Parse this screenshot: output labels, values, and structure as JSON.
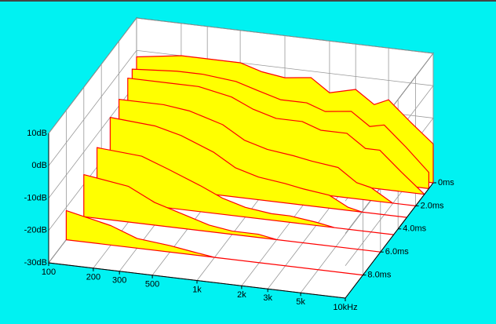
{
  "chart_data": {
    "type": "waterfall",
    "x": [
      100,
      200,
      300,
      500,
      700,
      1000,
      1500,
      2000,
      3000,
      4000,
      5000,
      7000,
      10000
    ],
    "xlim": [
      100,
      10000
    ],
    "log_x": true,
    "xticks": [
      100,
      200,
      300,
      500,
      {
        "value": 1000,
        "label": "1k"
      },
      {
        "value": 2000,
        "label": "2k"
      },
      {
        "value": 3000,
        "label": "3k"
      },
      {
        "value": 5000,
        "label": "5k"
      },
      {
        "value": 10000,
        "label": "10kHz"
      }
    ],
    "ylim": [
      -30,
      10
    ],
    "yticks": [
      {
        "value": 10,
        "label": "10dB"
      },
      {
        "value": 0,
        "label": "0dB"
      },
      {
        "value": -10,
        "label": "-10dB"
      },
      {
        "value": -20,
        "label": "-20dB"
      },
      {
        "value": -30,
        "label": "-30dB"
      }
    ],
    "zlim": [
      0,
      10
    ],
    "zticks": [
      {
        "value": 0,
        "label": "0ms"
      },
      {
        "value": 2,
        "label": "2.0ms"
      },
      {
        "value": 4,
        "label": "4.0ms"
      },
      {
        "value": 6,
        "label": "6.0ms"
      },
      {
        "value": 8,
        "label": "8.0ms"
      }
    ],
    "grid": true,
    "fill_color": "#ffff00",
    "line_color": "#ff0000",
    "series": [
      {
        "time": 0,
        "values": [
          -2,
          0,
          0,
          0,
          -2,
          -3,
          -2,
          -6,
          -4,
          -8,
          -6,
          -12,
          -18
        ]
      },
      {
        "time": 0.5,
        "values": [
          -4,
          -3,
          -3,
          -4,
          -6,
          -8,
          -8,
          -10,
          -9,
          -13,
          -12,
          -18,
          -25
        ]
      },
      {
        "time": 1,
        "values": [
          -5,
          -5,
          -5,
          -7,
          -10,
          -12,
          -12,
          -14,
          -14,
          -18,
          -18,
          -24,
          -30
        ]
      },
      {
        "time": 2,
        "values": [
          -8,
          -8,
          -9,
          -12,
          -16,
          -18,
          -19,
          -20,
          -21,
          -25,
          -26,
          -30,
          -30
        ]
      },
      {
        "time": 3,
        "values": [
          -10,
          -11,
          -13,
          -17,
          -21,
          -23,
          -24,
          -25,
          -26,
          -29,
          -30,
          -30,
          -30
        ]
      },
      {
        "time": 4.5,
        "values": [
          -14,
          -15,
          -18,
          -22,
          -25,
          -27,
          -28,
          -28,
          -29,
          -30,
          -30,
          -30,
          -30
        ]
      },
      {
        "time": 6,
        "values": [
          -17,
          -19,
          -23,
          -26,
          -28,
          -29,
          -29,
          -30,
          -30,
          -30,
          -30,
          -30,
          -30
        ]
      },
      {
        "time": 8,
        "values": [
          -21,
          -24,
          -27,
          -28,
          -29,
          -30,
          -30,
          -30,
          -30,
          -30,
          -30,
          -30,
          -30
        ]
      }
    ]
  }
}
